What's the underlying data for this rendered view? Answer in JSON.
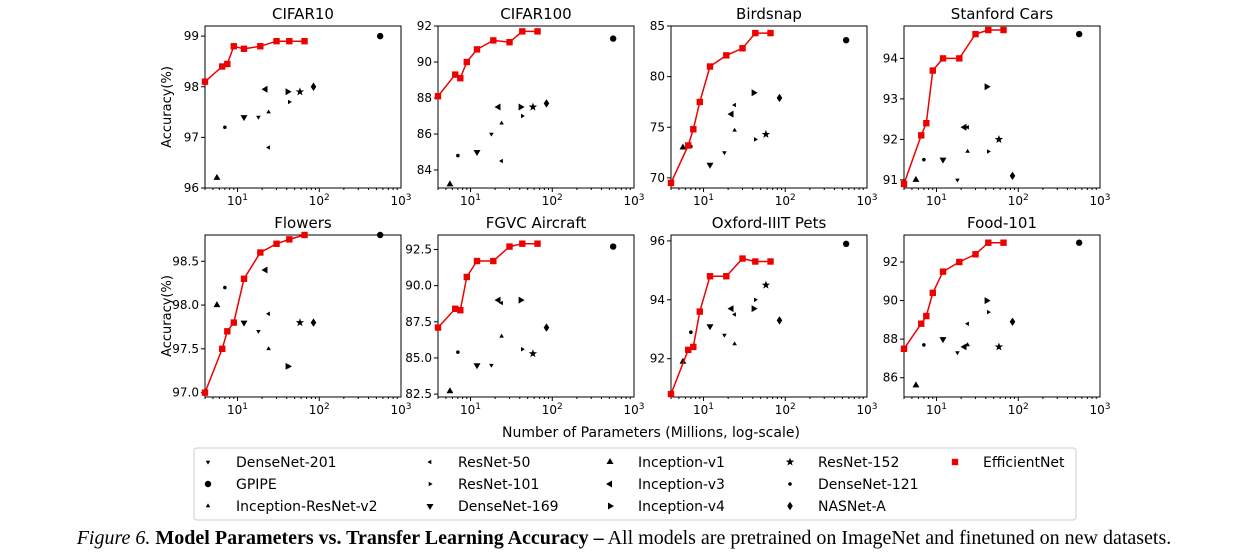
{
  "chart_data": {
    "type": "scatter",
    "xlabel": "Number of Parameters (Millions, log-scale)",
    "ylabel": "Accuracy(%)",
    "xscale": "log",
    "xlim": [
      4,
      1000
    ],
    "xticks": [
      {
        "value": 10,
        "label": "10",
        "exp": "1"
      },
      {
        "value": 100,
        "label": "10",
        "exp": "2"
      },
      {
        "value": 1000,
        "label": "10",
        "exp": "3"
      }
    ],
    "models": [
      {
        "key": "densenet201",
        "name": "DenseNet-201",
        "marker": "tri_down"
      },
      {
        "key": "gpipe",
        "name": "GPIPE",
        "marker": "circle"
      },
      {
        "key": "incresv2",
        "name": "Inception-ResNet-v2",
        "marker": "tri_up"
      },
      {
        "key": "resnet50",
        "name": "ResNet-50",
        "marker": "tri_left"
      },
      {
        "key": "resnet101",
        "name": "ResNet-101",
        "marker": "tri_right"
      },
      {
        "key": "densenet169",
        "name": "DenseNet-169",
        "marker": "triangle_down"
      },
      {
        "key": "incv1",
        "name": "Inception-v1",
        "marker": "triangle_up"
      },
      {
        "key": "incv3",
        "name": "Inception-v3",
        "marker": "triangle_left"
      },
      {
        "key": "incv4",
        "name": "Inception-v4",
        "marker": "triangle_right"
      },
      {
        "key": "resnet152",
        "name": "ResNet-152",
        "marker": "star"
      },
      {
        "key": "densenet121",
        "name": "DenseNet-121",
        "marker": "point"
      },
      {
        "key": "nasnet",
        "name": "NASNet-A",
        "marker": "diamond"
      },
      {
        "key": "efficientnet",
        "name": "EfficientNet",
        "marker": "square",
        "color": "#ee0000"
      }
    ],
    "params": {
      "densenet201": 18,
      "gpipe": 556,
      "incresv2": 24,
      "resnet50": 24,
      "resnet101": 43,
      "densenet169": 12,
      "incv1": 5.6,
      "incv3": 22,
      "incv4": 41,
      "resnet152": 58,
      "densenet121": 7,
      "nasnet": 85,
      "efficientnet": [
        4,
        6.5,
        7.5,
        9,
        12,
        19,
        30,
        43,
        66
      ]
    },
    "panels": [
      {
        "title": "CIFAR10",
        "ylim": [
          96,
          99.2
        ],
        "yticks": [
          96,
          97,
          98,
          99
        ],
        "values": {
          "densenet201": 97.4,
          "gpipe": 99.0,
          "incresv2": 97.5,
          "resnet50": 96.8,
          "resnet101": 97.7,
          "densenet169": 97.4,
          "incv1": 96.2,
          "incv3": 97.95,
          "incv4": 97.9,
          "resnet152": 97.9,
          "densenet121": 97.2,
          "nasnet": 98.0,
          "efficientnet": [
            98.1,
            98.4,
            98.45,
            98.8,
            98.75,
            98.8,
            98.9,
            98.9,
            98.9
          ]
        }
      },
      {
        "title": "CIFAR100",
        "ylim": [
          83,
          92
        ],
        "yticks": [
          84,
          86,
          88,
          90,
          92
        ],
        "values": {
          "densenet201": 86.0,
          "gpipe": 91.3,
          "incresv2": 86.6,
          "resnet50": 84.5,
          "resnet101": 87.0,
          "densenet169": 85.0,
          "incv1": 83.2,
          "incv3": 87.5,
          "incv4": 87.5,
          "resnet152": 87.5,
          "densenet121": 84.8,
          "nasnet": 87.7,
          "efficientnet": [
            88.1,
            89.3,
            89.1,
            90.0,
            90.7,
            91.2,
            91.1,
            91.7,
            91.7
          ]
        }
      },
      {
        "title": "Birdsnap",
        "ylim": [
          69,
          85
        ],
        "yticks": [
          70,
          75,
          80,
          85
        ],
        "values": {
          "densenet201": 72.5,
          "gpipe": 83.6,
          "incresv2": 74.7,
          "resnet50": 77.2,
          "resnet101": 73.8,
          "densenet169": 71.3,
          "incv1": 73.0,
          "incv3": 76.3,
          "incv4": 78.4,
          "resnet152": 74.3,
          "densenet121": 73.1,
          "nasnet": 77.9,
          "efficientnet": [
            69.5,
            73.2,
            74.8,
            77.5,
            81.0,
            82.1,
            82.8,
            84.3,
            84.3
          ]
        }
      },
      {
        "title": "Stanford Cars",
        "ylim": [
          90.8,
          94.8
        ],
        "yticks": [
          91,
          92,
          93,
          94
        ],
        "values": {
          "densenet201": 91.0,
          "gpipe": 94.6,
          "incresv2": 91.7,
          "resnet50": 92.3,
          "resnet101": 91.7,
          "densenet169": 91.5,
          "incv1": 91.0,
          "incv3": 92.3,
          "incv4": 93.3,
          "resnet152": 92.0,
          "densenet121": 91.5,
          "nasnet": 91.1,
          "efficientnet": [
            90.9,
            92.1,
            92.4,
            93.7,
            94.0,
            94.0,
            94.6,
            94.7,
            94.7
          ]
        }
      },
      {
        "title": "Flowers",
        "ylim": [
          96.95,
          98.8
        ],
        "yticks": [
          97.0,
          97.5,
          98.0,
          98.5
        ],
        "values": {
          "densenet201": 97.7,
          "gpipe": 98.8,
          "incresv2": 97.5,
          "resnet50": 97.9,
          "resnet101": 97.3,
          "densenet169": 97.8,
          "incv1": 98.0,
          "incv3": 98.4,
          "incv4": 97.3,
          "resnet152": 97.8,
          "densenet121": 98.2,
          "nasnet": 97.8,
          "efficientnet": [
            97.0,
            97.5,
            97.7,
            97.8,
            98.3,
            98.6,
            98.7,
            98.75,
            98.8
          ]
        }
      },
      {
        "title": "FGVC Aircraft",
        "ylim": [
          82.3,
          93.5
        ],
        "yticks": [
          82.5,
          85.0,
          87.5,
          90.0,
          92.5
        ],
        "values": {
          "densenet201": 84.5,
          "gpipe": 92.7,
          "incresv2": 86.5,
          "resnet50": 88.8,
          "resnet101": 85.6,
          "densenet169": 84.5,
          "incv1": 82.7,
          "incv3": 89.0,
          "incv4": 89.0,
          "resnet152": 85.3,
          "densenet121": 85.4,
          "nasnet": 87.1,
          "efficientnet": [
            87.1,
            88.4,
            88.3,
            90.6,
            91.7,
            91.7,
            92.7,
            92.9,
            92.9
          ]
        }
      },
      {
        "title": "Oxford-IIIT Pets",
        "ylim": [
          90.7,
          96.2
        ],
        "yticks": [
          92,
          94,
          96
        ],
        "values": {
          "densenet201": 92.8,
          "gpipe": 95.9,
          "incresv2": 92.5,
          "resnet50": 93.5,
          "resnet101": 94.0,
          "densenet169": 93.1,
          "incv1": 91.9,
          "incv3": 93.7,
          "incv4": 93.7,
          "resnet152": 94.5,
          "densenet121": 92.9,
          "nasnet": 93.3,
          "efficientnet": [
            90.8,
            92.3,
            92.4,
            93.6,
            94.8,
            94.8,
            95.4,
            95.3,
            95.3
          ]
        }
      },
      {
        "title": "Food-101",
        "ylim": [
          85,
          93.4
        ],
        "yticks": [
          86,
          88,
          90,
          92
        ],
        "values": {
          "densenet201": 87.3,
          "gpipe": 93.0,
          "incresv2": 87.7,
          "resnet50": 88.8,
          "resnet101": 89.4,
          "densenet169": 88.0,
          "incv1": 85.6,
          "incv3": 87.6,
          "incv4": 90.0,
          "resnet152": 87.6,
          "densenet121": 87.7,
          "nasnet": 88.9,
          "efficientnet": [
            87.5,
            88.8,
            89.2,
            90.4,
            91.5,
            92.0,
            92.4,
            93.0,
            93.0
          ]
        }
      }
    ]
  },
  "caption": {
    "figure_label": "Figure 6.",
    "bold_text": "Model Parameters vs. Transfer Learning Accuracy –",
    "text": "All models are pretrained on ImageNet and finetuned on new datasets."
  }
}
